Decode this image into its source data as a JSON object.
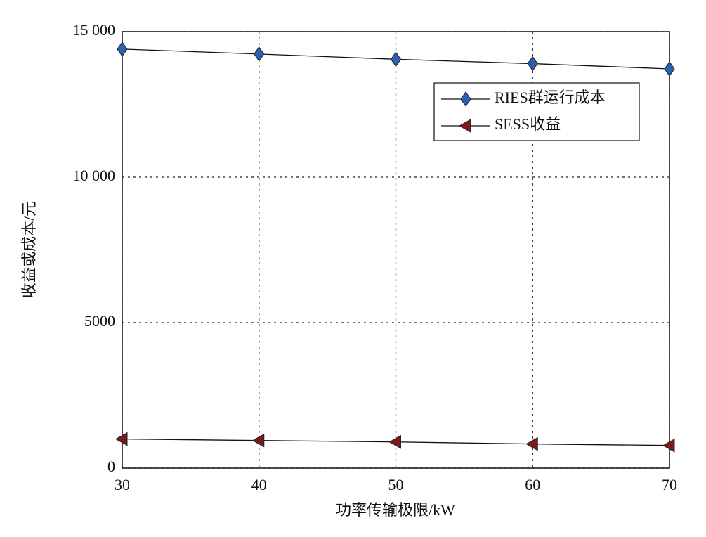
{
  "chart_data": {
    "type": "line",
    "x_label": "功率传输极限/kW",
    "y_label": "收益或成本/元",
    "x": [
      30,
      40,
      50,
      60,
      70
    ],
    "xlim": [
      30,
      70
    ],
    "xticks": [
      30,
      40,
      50,
      60,
      70
    ],
    "ylim": [
      0,
      15000
    ],
    "yticks": [
      0,
      5000,
      {
        "value": 10000,
        "label": "10 000"
      },
      {
        "value": 15000,
        "label": "15 000"
      }
    ],
    "grid": true,
    "legend": "upper right",
    "series": [
      {
        "name": "RIES群运行成本",
        "color": "#2f5fb3",
        "marker": "diamond",
        "values": [
          14400,
          14230,
          14050,
          13900,
          13720
        ]
      },
      {
        "name": "SESS收益",
        "color": "#7a1a1a",
        "marker": "triangle-left",
        "values": [
          1000,
          950,
          900,
          830,
          780
        ]
      }
    ]
  }
}
